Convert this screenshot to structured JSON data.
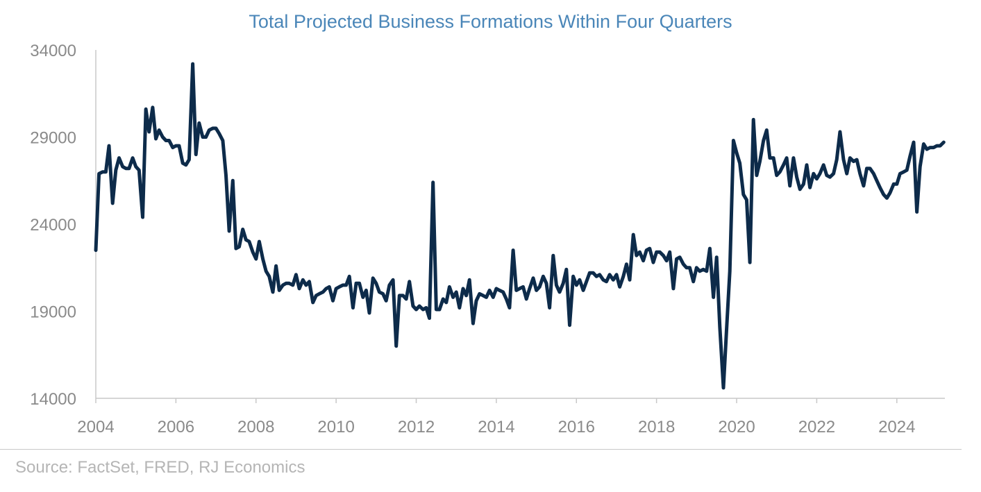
{
  "chart_data": {
    "type": "line",
    "title": "Total Projected Business Formations Within Four Quarters",
    "xlabel": "",
    "ylabel": "",
    "ylim": [
      14000,
      34000
    ],
    "xlim": [
      2004,
      2025.2
    ],
    "yticks": [
      14000,
      19000,
      24000,
      29000,
      34000
    ],
    "xticks": [
      2004,
      2006,
      2008,
      2010,
      2012,
      2014,
      2016,
      2018,
      2020,
      2022,
      2024
    ],
    "grid": false,
    "legend": "none",
    "colors": {
      "line": "#0d2b4a",
      "title": "#4a86b8",
      "ticks": "#8a8a8a",
      "axis": "#c8c8c8"
    },
    "series": [
      {
        "x": [
          2004.0,
          2004.08,
          2004.17,
          2004.25,
          2004.33,
          2004.42,
          2004.5,
          2004.58,
          2004.67,
          2004.75,
          2004.83,
          2004.92,
          2005.0,
          2005.08,
          2005.17,
          2005.25,
          2005.33,
          2005.42,
          2005.5,
          2005.58,
          2005.67,
          2005.75,
          2005.83,
          2005.92,
          2006.0,
          2006.08,
          2006.17,
          2006.25,
          2006.33,
          2006.42,
          2006.5,
          2006.58,
          2006.67,
          2006.75,
          2006.83,
          2006.92,
          2007.0,
          2007.08,
          2007.17,
          2007.25,
          2007.33,
          2007.42,
          2007.5,
          2007.58,
          2007.67,
          2007.75,
          2007.83,
          2007.92,
          2008.0,
          2008.08,
          2008.17,
          2008.25,
          2008.33,
          2008.42,
          2008.5,
          2008.58,
          2008.67,
          2008.75,
          2008.83,
          2008.92,
          2009.0,
          2009.08,
          2009.17,
          2009.25,
          2009.33,
          2009.42,
          2009.5,
          2009.58,
          2009.67,
          2009.75,
          2009.83,
          2009.92,
          2010.0,
          2010.08,
          2010.17,
          2010.25,
          2010.33,
          2010.42,
          2010.5,
          2010.58,
          2010.67,
          2010.75,
          2010.83,
          2010.92,
          2011.0,
          2011.08,
          2011.17,
          2011.25,
          2011.33,
          2011.42,
          2011.5,
          2011.58,
          2011.67,
          2011.75,
          2011.83,
          2011.92,
          2012.0,
          2012.08,
          2012.17,
          2012.25,
          2012.33,
          2012.42,
          2012.5,
          2012.58,
          2012.67,
          2012.75,
          2012.83,
          2012.92,
          2013.0,
          2013.08,
          2013.17,
          2013.25,
          2013.33,
          2013.42,
          2013.5,
          2013.58,
          2013.67,
          2013.75,
          2013.83,
          2013.92,
          2014.0,
          2014.08,
          2014.17,
          2014.25,
          2014.33,
          2014.42,
          2014.5,
          2014.58,
          2014.67,
          2014.75,
          2014.83,
          2014.92,
          2015.0,
          2015.08,
          2015.17,
          2015.25,
          2015.33,
          2015.42,
          2015.5,
          2015.58,
          2015.67,
          2015.75,
          2015.83,
          2015.92,
          2016.0,
          2016.08,
          2016.17,
          2016.25,
          2016.33,
          2016.42,
          2016.5,
          2016.58,
          2016.67,
          2016.75,
          2016.83,
          2016.92,
          2017.0,
          2017.08,
          2017.17,
          2017.25,
          2017.33,
          2017.42,
          2017.5,
          2017.58,
          2017.67,
          2017.75,
          2017.83,
          2017.92,
          2018.0,
          2018.08,
          2018.17,
          2018.25,
          2018.33,
          2018.42,
          2018.5,
          2018.58,
          2018.67,
          2018.75,
          2018.83,
          2018.92,
          2019.0,
          2019.08,
          2019.17,
          2019.25,
          2019.33,
          2019.42,
          2019.5,
          2019.58,
          2019.67,
          2019.75,
          2019.83,
          2019.92,
          2020.0,
          2020.08,
          2020.17,
          2020.25,
          2020.33,
          2020.42,
          2020.5,
          2020.58,
          2020.67,
          2020.75,
          2020.83,
          2020.92,
          2021.0,
          2021.08,
          2021.17,
          2021.25,
          2021.33,
          2021.42,
          2021.5,
          2021.58,
          2021.67,
          2021.75,
          2021.83,
          2021.92,
          2022.0,
          2022.08,
          2022.17,
          2022.25,
          2022.33,
          2022.42,
          2022.5,
          2022.58,
          2022.67,
          2022.75,
          2022.83,
          2022.92,
          2023.0,
          2023.08,
          2023.17,
          2023.25,
          2023.33,
          2023.42,
          2023.5,
          2023.58,
          2023.67,
          2023.75,
          2023.83,
          2023.92,
          2024.0,
          2024.08,
          2024.17,
          2024.25,
          2024.33,
          2024.42,
          2024.5,
          2024.58,
          2024.67,
          2024.75,
          2024.83,
          2024.92,
          2025.0,
          2025.08,
          2025.17
        ],
        "y": [
          22500,
          26900,
          27000,
          27000,
          28500,
          25200,
          27100,
          27800,
          27300,
          27200,
          27200,
          27800,
          27300,
          27100,
          24400,
          30600,
          29300,
          30700,
          28900,
          29400,
          29000,
          28800,
          28800,
          28400,
          28500,
          28500,
          27500,
          27400,
          27700,
          33200,
          28000,
          29800,
          29000,
          29000,
          29400,
          29500,
          29500,
          29200,
          28800,
          26800,
          23600,
          26500,
          22600,
          22700,
          23700,
          23100,
          23000,
          22400,
          22000,
          23000,
          22000,
          21300,
          21000,
          20100,
          21600,
          20200,
          20500,
          20600,
          20600,
          20500,
          21100,
          20300,
          20800,
          20500,
          20700,
          19500,
          19900,
          20000,
          20100,
          20300,
          20400,
          19600,
          20300,
          20400,
          20500,
          20500,
          21000,
          19200,
          20600,
          20600,
          19800,
          20200,
          18900,
          20900,
          20600,
          20100,
          20000,
          19600,
          20500,
          20800,
          17000,
          19900,
          19900,
          19700,
          20700,
          19300,
          19100,
          19300,
          19100,
          19200,
          18600,
          26400,
          19100,
          19100,
          19700,
          19500,
          20400,
          19800,
          20100,
          19200,
          20300,
          19900,
          20800,
          18300,
          19600,
          20000,
          19900,
          19800,
          20200,
          19800,
          20300,
          20200,
          20100,
          19700,
          19200,
          22500,
          20200,
          20300,
          20400,
          19700,
          20300,
          20900,
          20200,
          20400,
          21000,
          20600,
          19200,
          22200,
          20500,
          20100,
          20600,
          21400,
          18200,
          21000,
          20500,
          20800,
          20200,
          20700,
          21200,
          21200,
          21000,
          21100,
          20800,
          20700,
          21100,
          20800,
          21100,
          20400,
          21000,
          21700,
          20800,
          23400,
          22200,
          22400,
          21900,
          22500,
          22600,
          21800,
          22400,
          22400,
          22200,
          21900,
          22400,
          20300,
          22000,
          22100,
          21700,
          21500,
          21500,
          20700,
          21500,
          21300,
          21400,
          21300,
          22600,
          19800,
          22100,
          18100,
          14600,
          18000,
          21300,
          28800,
          28100,
          27500,
          25700,
          25400,
          21800,
          30000,
          26800,
          27600,
          28800,
          29400,
          27800,
          27800,
          26800,
          27000,
          27400,
          27800,
          26200,
          27800,
          26700,
          26000,
          26300,
          27400,
          26100,
          26900,
          26600,
          26900,
          27400,
          26800,
          26700,
          26900,
          27700,
          29300,
          27700,
          26900,
          27800,
          27600,
          27700,
          26900,
          26200,
          27200,
          27200,
          26900,
          26500,
          26100,
          25700,
          25500,
          25800,
          26300,
          26300,
          26900,
          27000,
          27100,
          27900,
          28700,
          24700,
          27300,
          28600,
          28300,
          28400,
          28400,
          28500,
          28500,
          28700
        ]
      }
    ],
    "source": "Source: FactSet, FRED, RJ Economics"
  }
}
